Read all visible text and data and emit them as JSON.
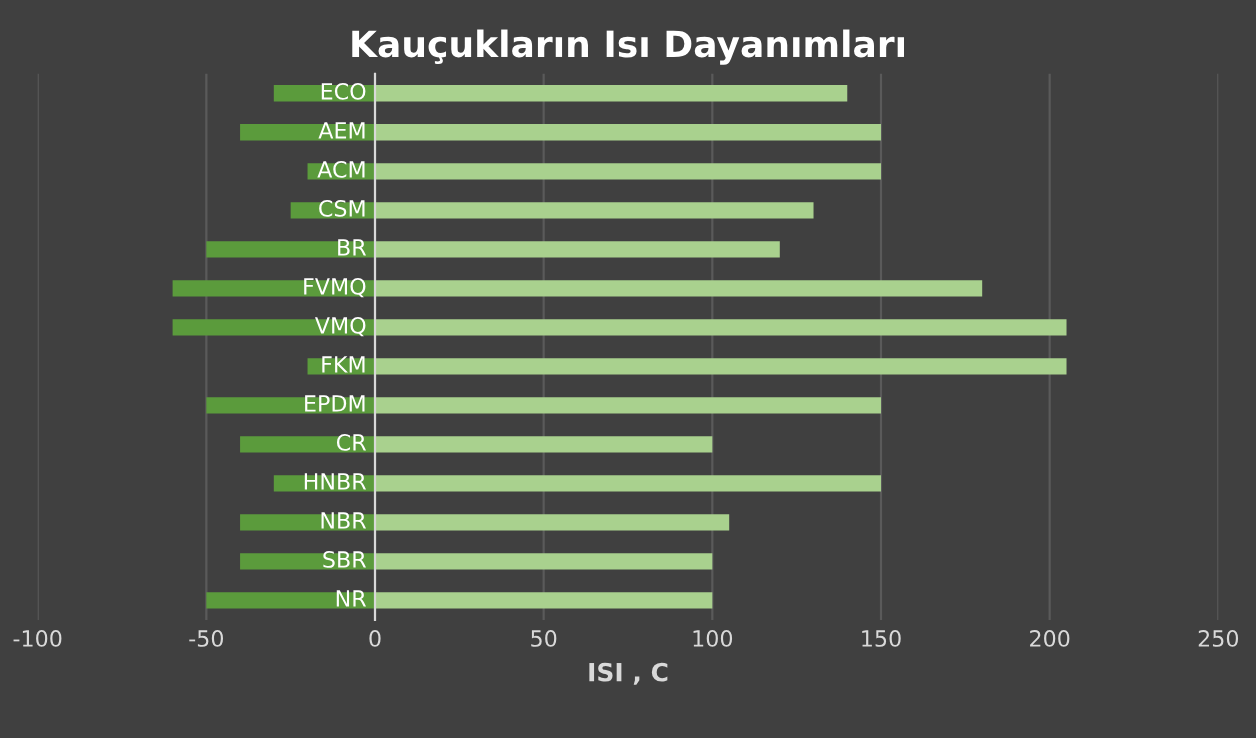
{
  "chart_data": {
    "type": "bar",
    "orientation": "horizontal",
    "stacked": true,
    "title": "Kauçukların Isı Dayanımları",
    "xlabel": "ISI , C",
    "categories": [
      "ECO",
      "AEM",
      "ACM",
      "CSM",
      "BR",
      "FVMQ",
      "VMQ",
      "FKM",
      "EPDM",
      "CR",
      "HNBR",
      "NBR",
      "SBR",
      "NR"
    ],
    "series": [
      {
        "color": "#5b9b3c",
        "values": [
          -30,
          -40,
          -20,
          -25,
          -50,
          -60,
          -60,
          -20,
          -50,
          -40,
          -30,
          -40,
          -40,
          -50
        ]
      },
      {
        "color": "#a9d18e",
        "values": [
          140,
          150,
          150,
          130,
          120,
          180,
          205,
          205,
          150,
          100,
          150,
          105,
          100,
          100
        ]
      }
    ],
    "xlim": [
      -100,
      250
    ],
    "xticks": [
      -100,
      -50,
      0,
      50,
      100,
      150,
      200,
      250
    ],
    "grid": "x",
    "legend": false
  }
}
